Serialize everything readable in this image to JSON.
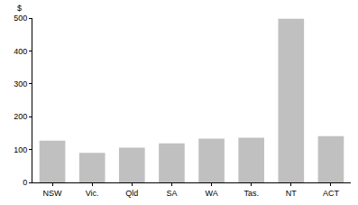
{
  "chart_data": {
    "type": "bar",
    "y_label": "$",
    "categories": [
      "NSW",
      "Vic.",
      "Qld",
      "SA",
      "WA",
      "Tas.",
      "NT",
      "ACT"
    ],
    "values": [
      127,
      90,
      106,
      119,
      133,
      136,
      498,
      141
    ],
    "color": "#c0c0c0",
    "ylim": [
      0,
      500
    ],
    "yticks": [
      0,
      100,
      200,
      300,
      400,
      500
    ],
    "grid": true
  }
}
